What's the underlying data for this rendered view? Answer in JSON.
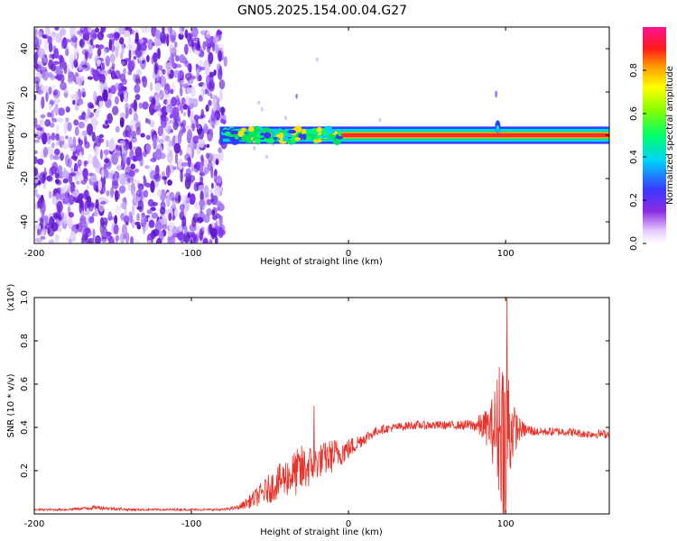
{
  "chart_data": [
    {
      "type": "heatmap",
      "title": "GN05.2025.154.00.04.G27",
      "xlabel": "Height of straight line (km)",
      "ylabel": "Frequency (Hz)",
      "xlim": [
        -200,
        166
      ],
      "ylim": [
        -50,
        50
      ],
      "xticks": [
        "-200",
        "-100",
        "0",
        "100"
      ],
      "yticks": [
        "40",
        "20",
        "0",
        "-20",
        "-40"
      ],
      "colorbar": {
        "label": "Normalized spectral amplitude",
        "range": [
          0.0,
          1.0
        ],
        "ticks": [
          "0.0",
          "0.2",
          "0.4",
          "0.6",
          "0.8"
        ],
        "colormap": "rainbow (white-violet-blue-cyan-green-yellow-orange-red-magenta)"
      },
      "regions": [
        {
          "x": [
            -200,
            -80
          ],
          "description": "scattered noise",
          "amplitude": 0.15,
          "freq_span": [
            -50,
            50
          ]
        },
        {
          "x": [
            -80,
            166
          ],
          "description": "narrow carrier near 0 Hz",
          "center_freq": 0,
          "amplitude": 0.9
        },
        {
          "x": [
            -80,
            -40
          ],
          "description": "weaker, wider band",
          "amplitude": 0.5
        },
        {
          "x": [
            85,
            100
          ],
          "description": "broadening / spike",
          "amplitude": 0.4
        }
      ]
    },
    {
      "type": "line",
      "xlabel": "Height of straight line (km)",
      "ylabel": "SNR (10 * v/v)",
      "y_scale_label": "(x10⁴)",
      "xlim": [
        -200,
        166
      ],
      "ylim": [
        0,
        1.0
      ],
      "xticks": [
        "-200",
        "-100",
        "0",
        "100"
      ],
      "yticks": [
        "0.2",
        "0.4",
        "0.6",
        "0.8",
        "1.0"
      ],
      "series": [
        {
          "color": "#e8322a",
          "x": [
            -200,
            -180,
            -160,
            -140,
            -120,
            -100,
            -80,
            -70,
            -60,
            -50,
            -40,
            -30,
            -20,
            -10,
            0,
            10,
            20,
            30,
            40,
            50,
            60,
            70,
            80,
            90,
            95,
            100,
            105,
            110,
            120,
            130,
            140,
            150,
            160,
            166
          ],
          "mean": [
            0.02,
            0.02,
            0.03,
            0.02,
            0.02,
            0.02,
            0.02,
            0.03,
            0.07,
            0.12,
            0.17,
            0.2,
            0.24,
            0.27,
            0.3,
            0.35,
            0.39,
            0.4,
            0.41,
            0.41,
            0.41,
            0.41,
            0.41,
            0.4,
            0.38,
            0.4,
            0.39,
            0.39,
            0.38,
            0.38,
            0.38,
            0.37,
            0.37,
            0.37
          ],
          "spread": [
            0.005,
            0.005,
            0.01,
            0.005,
            0.005,
            0.005,
            0.005,
            0.01,
            0.04,
            0.07,
            0.09,
            0.12,
            0.08,
            0.08,
            0.05,
            0.03,
            0.02,
            0.02,
            0.02,
            0.02,
            0.02,
            0.02,
            0.03,
            0.1,
            0.28,
            0.45,
            0.12,
            0.04,
            0.02,
            0.02,
            0.02,
            0.02,
            0.02,
            0.02
          ],
          "peaks": [
            {
              "x": -22,
              "y": 0.5
            },
            {
              "x": 96,
              "y": 0.68
            },
            {
              "x": 101,
              "y": 1.05
            },
            {
              "x": 100,
              "y": 0.01
            }
          ]
        }
      ]
    }
  ]
}
